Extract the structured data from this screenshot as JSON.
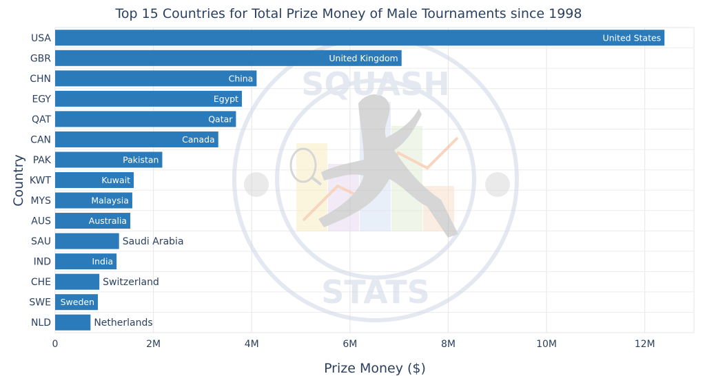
{
  "chart_data": {
    "type": "bar",
    "orientation": "horizontal",
    "title": "Top 15 Countries for Total Prize Money of Male Tournaments since 1998",
    "xlabel": "Prize Money ($)",
    "ylabel": "Country",
    "xlim": [
      0,
      13000000
    ],
    "xticks": [
      {
        "value": 0,
        "label": "0"
      },
      {
        "value": 2000000,
        "label": "2M"
      },
      {
        "value": 4000000,
        "label": "4M"
      },
      {
        "value": 6000000,
        "label": "6M"
      },
      {
        "value": 8000000,
        "label": "8M"
      },
      {
        "value": 10000000,
        "label": "10M"
      },
      {
        "value": 12000000,
        "label": "12M"
      }
    ],
    "grid": true,
    "bar_color": "#2b7bba",
    "categories": [
      "USA",
      "GBR",
      "CHN",
      "EGY",
      "QAT",
      "CAN",
      "PAK",
      "KWT",
      "MYS",
      "AUS",
      "SAU",
      "IND",
      "CHE",
      "SWE",
      "NLD"
    ],
    "values": [
      12400000,
      7050000,
      4100000,
      3800000,
      3680000,
      3320000,
      2180000,
      1600000,
      1570000,
      1530000,
      1300000,
      1250000,
      900000,
      870000,
      720000
    ],
    "text": [
      "United States",
      "United Kingdom",
      "China",
      "Egypt",
      "Qatar",
      "Canada",
      "Pakistan",
      "Kuwait",
      "Malaysia",
      "Australia",
      "Saudi Arabia",
      "India",
      "Switzerland",
      "Sweden",
      "Netherlands"
    ],
    "text_position": [
      "inside",
      "inside",
      "inside",
      "inside",
      "inside",
      "inside",
      "inside",
      "inside",
      "inside",
      "inside",
      "outside",
      "inside",
      "outside",
      "inside",
      "outside"
    ]
  },
  "watermark": {
    "top_text": "SQUASH",
    "bottom_text": "STATS"
  }
}
